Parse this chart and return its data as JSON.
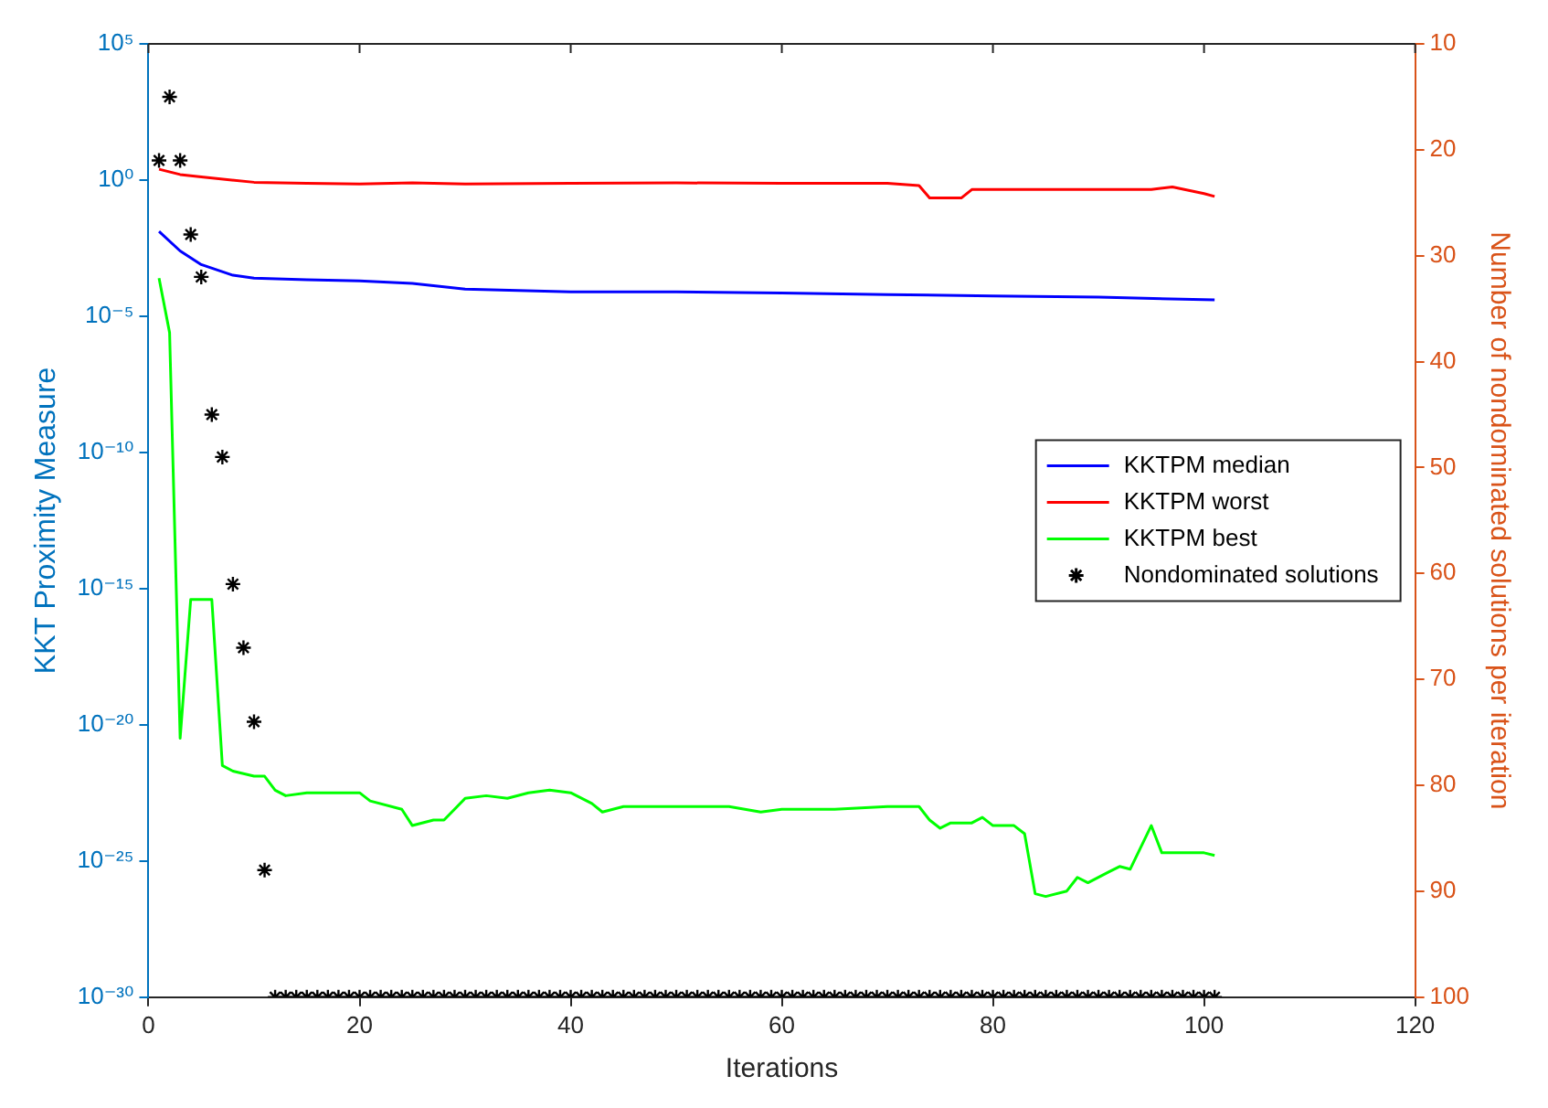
{
  "chart_data": {
    "type": "line",
    "xlabel": "Iterations",
    "ylabel": "KKT Proximity Measure",
    "y2label": "Number of nondominated solutions per iteration",
    "log": "y",
    "grid": false,
    "legend": "right",
    "line_style": "solid",
    "marker": "none",
    "xlim": [
      0,
      120
    ],
    "xticks": [
      0,
      20,
      40,
      60,
      80,
      100,
      120
    ],
    "ylim": [
      1e-30,
      100000.0
    ],
    "yticks": [
      {
        "value": 100000.0,
        "label": "10⁵"
      },
      {
        "value": 1,
        "label": "10⁰"
      },
      {
        "value": 1e-05,
        "label": "10⁻⁵"
      },
      {
        "value": 1e-10,
        "label": "10⁻¹⁰"
      },
      {
        "value": 1e-15,
        "label": "10⁻¹⁵"
      },
      {
        "value": 1e-20,
        "label": "10⁻²⁰"
      },
      {
        "value": 1e-25,
        "label": "10⁻²⁵"
      },
      {
        "value": 1e-30,
        "label": "10⁻³⁰"
      }
    ],
    "y2lim": [
      100,
      10
    ],
    "y2ticks": [
      10,
      20,
      30,
      40,
      50,
      60,
      70,
      80,
      90,
      100
    ],
    "series": [
      {
        "name": "KKTPM median",
        "color": "#0000ff",
        "x": [
          1,
          3,
          5,
          8,
          10,
          15,
          20,
          25,
          30,
          40,
          50,
          60,
          70,
          80,
          90,
          101
        ],
        "values": [
          0.013,
          0.0025,
          0.00079,
          0.00032,
          0.00025,
          0.00022,
          0.0002,
          0.00016,
          0.0001,
          7.9e-05,
          7.9e-05,
          7.1e-05,
          6.3e-05,
          5.6e-05,
          5e-05,
          4e-05
        ]
      },
      {
        "name": "KKTPM worst",
        "color": "#ff0000",
        "x": [
          1,
          3,
          5,
          10,
          15,
          20,
          25,
          30,
          40,
          50,
          60,
          70,
          73,
          74,
          77,
          78,
          85,
          90,
          95,
          97,
          100,
          101
        ],
        "values": [
          2.5,
          1.6,
          1.3,
          0.83,
          0.76,
          0.72,
          0.79,
          0.72,
          0.76,
          0.79,
          0.76,
          0.76,
          0.63,
          0.22,
          0.22,
          0.45,
          0.45,
          0.45,
          0.45,
          0.56,
          0.32,
          0.25
        ]
      },
      {
        "name": "KKTPM best",
        "color": "#00ff00",
        "x": [
          1,
          2,
          3,
          4,
          6,
          7,
          8,
          10,
          11,
          12,
          13,
          15,
          20,
          21,
          24,
          25,
          27,
          28,
          30,
          32,
          34,
          36,
          38,
          40,
          42,
          43,
          45,
          55,
          58,
          60,
          65,
          70,
          73,
          74,
          75,
          76,
          78,
          79,
          80,
          82,
          83,
          84,
          85,
          87,
          88,
          89,
          91,
          92,
          93,
          95,
          96,
          100,
          101
        ],
        "values": [
          0.00025,
          2.5e-06,
          3.2e-21,
          4e-16,
          4e-16,
          3.2e-22,
          2e-22,
          1.3e-22,
          1.3e-22,
          4e-23,
          2.5e-23,
          3.2e-23,
          3.2e-23,
          1.6e-23,
          7.9e-24,
          2e-24,
          3.2e-24,
          3.2e-24,
          2e-23,
          2.5e-23,
          2e-23,
          3.2e-23,
          4e-23,
          3.2e-23,
          1.3e-23,
          6.3e-24,
          1e-23,
          1e-23,
          6.3e-24,
          7.9e-24,
          7.9e-24,
          1e-23,
          1e-23,
          3.2e-24,
          1.6e-24,
          2.5e-24,
          2.5e-24,
          4e-24,
          2e-24,
          2e-24,
          1e-24,
          6.3e-27,
          5e-27,
          7.9e-27,
          2.5e-26,
          1.6e-26,
          4e-26,
          6.3e-26,
          5e-26,
          2e-24,
          2e-25,
          2e-25,
          1.6e-25
        ]
      },
      {
        "name": "Nondominated solutions",
        "type": "scatter",
        "axis": "y2",
        "marker": "cross",
        "color": "#000000",
        "x": [
          1,
          2,
          3,
          4,
          5,
          6,
          7,
          8,
          9,
          10,
          11,
          12,
          13,
          14,
          15,
          16,
          17,
          18,
          19,
          20,
          21,
          22,
          23,
          24,
          25,
          26,
          27,
          28,
          29,
          30,
          31,
          32,
          33,
          34,
          35,
          36,
          37,
          38,
          39,
          40,
          41,
          42,
          43,
          44,
          45,
          46,
          47,
          48,
          49,
          50,
          51,
          52,
          53,
          54,
          55,
          56,
          57,
          58,
          59,
          60,
          61,
          62,
          63,
          64,
          65,
          66,
          67,
          68,
          69,
          70,
          71,
          72,
          73,
          74,
          75,
          76,
          77,
          78,
          79,
          80,
          81,
          82,
          83,
          84,
          85,
          86,
          87,
          88,
          89,
          90,
          91,
          92,
          93,
          94,
          95,
          96,
          97,
          98,
          99,
          100,
          101
        ],
        "values": [
          21,
          15,
          21,
          28,
          32,
          45,
          49,
          61,
          67,
          74,
          88,
          100,
          100,
          100,
          100,
          100,
          100,
          100,
          100,
          100,
          100,
          100,
          100,
          100,
          100,
          100,
          100,
          100,
          100,
          100,
          100,
          100,
          100,
          100,
          100,
          100,
          100,
          100,
          100,
          100,
          100,
          100,
          100,
          100,
          100,
          100,
          100,
          100,
          100,
          100,
          100,
          100,
          100,
          100,
          100,
          100,
          100,
          100,
          100,
          100,
          100,
          100,
          100,
          100,
          100,
          100,
          100,
          100,
          100,
          100,
          100,
          100,
          100,
          100,
          100,
          100,
          100,
          100,
          100,
          100,
          100,
          100,
          100,
          100,
          100,
          100,
          100,
          100,
          100,
          100,
          100,
          100,
          100,
          100,
          100,
          100,
          100,
          100,
          100,
          100,
          100
        ]
      }
    ]
  }
}
